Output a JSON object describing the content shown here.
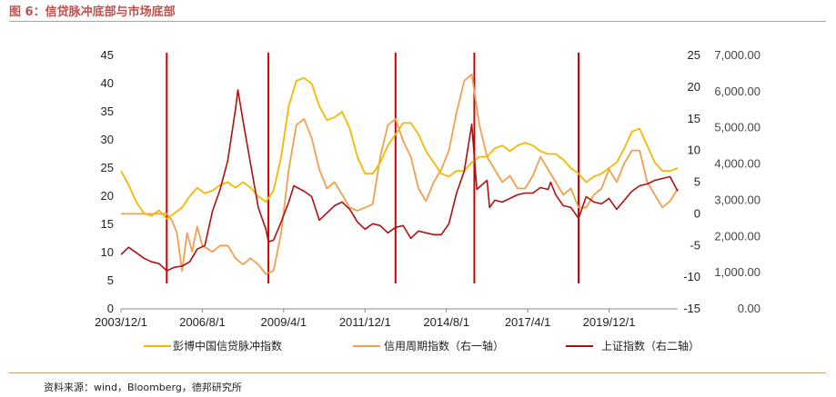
{
  "header": {
    "title": "图 6：信贷脉冲底部与市场底部"
  },
  "footer": {
    "source": "资料来源：wind，Bloomberg，德邦研究所"
  },
  "chart_data": {
    "type": "line",
    "x_ticks": [
      "2003/12/1",
      "2006/8/1",
      "2009/4/1",
      "2011/12/1",
      "2014/8/1",
      "2017/4/1",
      "2019/12/1"
    ],
    "x_range": [
      "2003/12",
      "2022/03"
    ],
    "y_left": {
      "range": [
        0,
        45
      ],
      "ticks": [
        "0",
        "5",
        "10",
        "15",
        "20",
        "25",
        "30",
        "35",
        "40",
        "45"
      ]
    },
    "y_right1": {
      "range": [
        -15,
        25
      ],
      "ticks": [
        "-15",
        "-10",
        "-5",
        "0",
        "5",
        "10",
        "15",
        "20",
        "25"
      ]
    },
    "y_right2": {
      "range": [
        0,
        7000
      ],
      "ticks": [
        "0.00",
        "1,000.00",
        "2,000.00",
        "3,000.00",
        "4,000.00",
        "5,000.00",
        "6,000.00",
        "7,000.00"
      ]
    },
    "vlines": [
      "2005/06",
      "2008/10",
      "2012/12",
      "2015/07",
      "2018/12"
    ],
    "colors": {
      "credit_impulse": "#f5b800",
      "credit_cycle": "#f0a050",
      "sse": "#b01010",
      "vline": "#d00000"
    },
    "series": [
      {
        "name": "彭博中国信贷脉冲指数",
        "axis": "left",
        "x": [
          "2003/12",
          "2004/03",
          "2004/06",
          "2004/09",
          "2004/12",
          "2005/03",
          "2005/06",
          "2005/09",
          "2005/12",
          "2006/03",
          "2006/06",
          "2006/09",
          "2006/12",
          "2007/03",
          "2007/06",
          "2007/09",
          "2007/12",
          "2008/03",
          "2008/06",
          "2008/09",
          "2008/12",
          "2009/03",
          "2009/06",
          "2009/09",
          "2009/12",
          "2010/03",
          "2010/06",
          "2010/09",
          "2010/12",
          "2011/03",
          "2011/06",
          "2011/09",
          "2011/12",
          "2012/03",
          "2012/06",
          "2012/09",
          "2012/12",
          "2013/03",
          "2013/06",
          "2013/09",
          "2013/12",
          "2014/03",
          "2014/06",
          "2014/09",
          "2014/12",
          "2015/03",
          "2015/06",
          "2015/09",
          "2015/12",
          "2016/03",
          "2016/06",
          "2016/09",
          "2016/12",
          "2017/03",
          "2017/06",
          "2017/09",
          "2017/12",
          "2018/03",
          "2018/06",
          "2018/09",
          "2018/12",
          "2019/03",
          "2019/06",
          "2019/09",
          "2019/12",
          "2020/03",
          "2020/06",
          "2020/09",
          "2020/12",
          "2021/03",
          "2021/06",
          "2021/09",
          "2021/12",
          "2022/03"
        ],
        "values": [
          24.5,
          22,
          19,
          17,
          16.5,
          17.5,
          16,
          17,
          18,
          20,
          21.5,
          20.5,
          21,
          22,
          22.5,
          21.5,
          22.5,
          21.5,
          20,
          19,
          21,
          27,
          36,
          40.5,
          41,
          40,
          36,
          33.5,
          34,
          35,
          32,
          27,
          24,
          24,
          26,
          29,
          31,
          33,
          33,
          31,
          28,
          26,
          24,
          23.5,
          24.5,
          24.5,
          26,
          27,
          27,
          28.5,
          29,
          28,
          29,
          29.5,
          29,
          28,
          27.5,
          27.5,
          26.5,
          25,
          24,
          22.5,
          23.5,
          24,
          25,
          26,
          28.5,
          31.5,
          32,
          29,
          26,
          24.5,
          24.5,
          25
        ]
      },
      {
        "name": "信用周期指数（右一轴）",
        "axis": "right1",
        "x": [
          "2003/12",
          "2004/06",
          "2004/12",
          "2005/06",
          "2005/08",
          "2005/10",
          "2005/12",
          "2006/02",
          "2006/04",
          "2006/06",
          "2006/08",
          "2006/12",
          "2007/03",
          "2007/06",
          "2007/09",
          "2007/12",
          "2008/03",
          "2008/06",
          "2008/09",
          "2008/12",
          "2009/03",
          "2009/06",
          "2009/09",
          "2009/12",
          "2010/03",
          "2010/06",
          "2010/09",
          "2010/12",
          "2011/03",
          "2011/06",
          "2011/09",
          "2011/12",
          "2012/03",
          "2012/06",
          "2012/09",
          "2012/12",
          "2013/03",
          "2013/06",
          "2013/09",
          "2013/12",
          "2014/03",
          "2014/06",
          "2014/09",
          "2014/12",
          "2015/03",
          "2015/06",
          "2015/09",
          "2015/12",
          "2016/03",
          "2016/06",
          "2016/09",
          "2016/12",
          "2017/03",
          "2017/06",
          "2017/09",
          "2017/12",
          "2018/03",
          "2018/06",
          "2018/09",
          "2018/12",
          "2019/03",
          "2019/06",
          "2019/09",
          "2019/12",
          "2020/03",
          "2020/06",
          "2020/09",
          "2020/12",
          "2021/03",
          "2021/06",
          "2021/09",
          "2021/12",
          "2022/03"
        ],
        "values": [
          0,
          0,
          0,
          0,
          -1,
          -3,
          -9,
          -3,
          -6,
          -2,
          -5,
          -6,
          -5,
          -5,
          -7,
          -8,
          -7,
          -8,
          -9.5,
          -9,
          -3,
          7,
          14,
          15,
          12,
          7,
          4,
          5,
          3,
          1,
          0.5,
          1,
          1.5,
          9,
          14,
          15,
          11.5,
          9,
          4,
          2,
          5,
          7,
          10,
          16,
          21,
          22,
          14,
          9,
          7,
          5,
          6,
          4,
          4,
          6,
          9,
          7,
          5,
          3,
          4,
          1,
          1,
          3,
          4,
          7,
          5,
          8,
          10,
          10,
          5,
          3,
          1,
          2,
          4
        ]
      },
      {
        "name": "上证指数（右二轴）",
        "axis": "right2",
        "x": [
          "2003/12",
          "2004/03",
          "2004/06",
          "2004/09",
          "2004/12",
          "2005/03",
          "2005/06",
          "2005/09",
          "2005/12",
          "2006/03",
          "2006/06",
          "2006/09",
          "2006/12",
          "2007/03",
          "2007/06",
          "2007/09",
          "2007/10",
          "2007/12",
          "2008/03",
          "2008/06",
          "2008/09",
          "2008/10",
          "2008/12",
          "2009/03",
          "2009/06",
          "2009/08",
          "2009/12",
          "2010/03",
          "2010/06",
          "2010/09",
          "2010/12",
          "2011/03",
          "2011/06",
          "2011/09",
          "2011/12",
          "2012/03",
          "2012/06",
          "2012/09",
          "2012/12",
          "2013/03",
          "2013/06",
          "2013/09",
          "2013/12",
          "2014/03",
          "2014/06",
          "2014/09",
          "2014/12",
          "2015/03",
          "2015/06",
          "2015/08",
          "2015/12",
          "2016/01",
          "2016/03",
          "2016/06",
          "2016/09",
          "2016/12",
          "2017/03",
          "2017/06",
          "2017/09",
          "2017/12",
          "2018/01",
          "2018/03",
          "2018/06",
          "2018/09",
          "2018/12",
          "2019/03",
          "2019/06",
          "2019/09",
          "2019/12",
          "2020/03",
          "2020/06",
          "2020/09",
          "2020/12",
          "2021/03",
          "2021/06",
          "2021/09",
          "2021/12",
          "2022/03"
        ],
        "values": [
          1500,
          1700,
          1550,
          1400,
          1300,
          1250,
          1050,
          1150,
          1180,
          1300,
          1650,
          1750,
          2700,
          3300,
          4100,
          5500,
          6050,
          5200,
          4000,
          2800,
          2200,
          1850,
          1900,
          2400,
          2950,
          3400,
          3250,
          3100,
          2450,
          2650,
          2850,
          2950,
          2750,
          2400,
          2200,
          2350,
          2300,
          2100,
          2250,
          2300,
          1950,
          2150,
          2100,
          2050,
          2050,
          2350,
          3200,
          3800,
          5100,
          3300,
          3550,
          2800,
          3000,
          2950,
          3050,
          3150,
          3200,
          3200,
          3350,
          3300,
          3500,
          3150,
          2850,
          2800,
          2500,
          3100,
          2950,
          2900,
          3050,
          2750,
          3000,
          3250,
          3400,
          3450,
          3550,
          3600,
          3650,
          3250
        ]
      }
    ]
  }
}
